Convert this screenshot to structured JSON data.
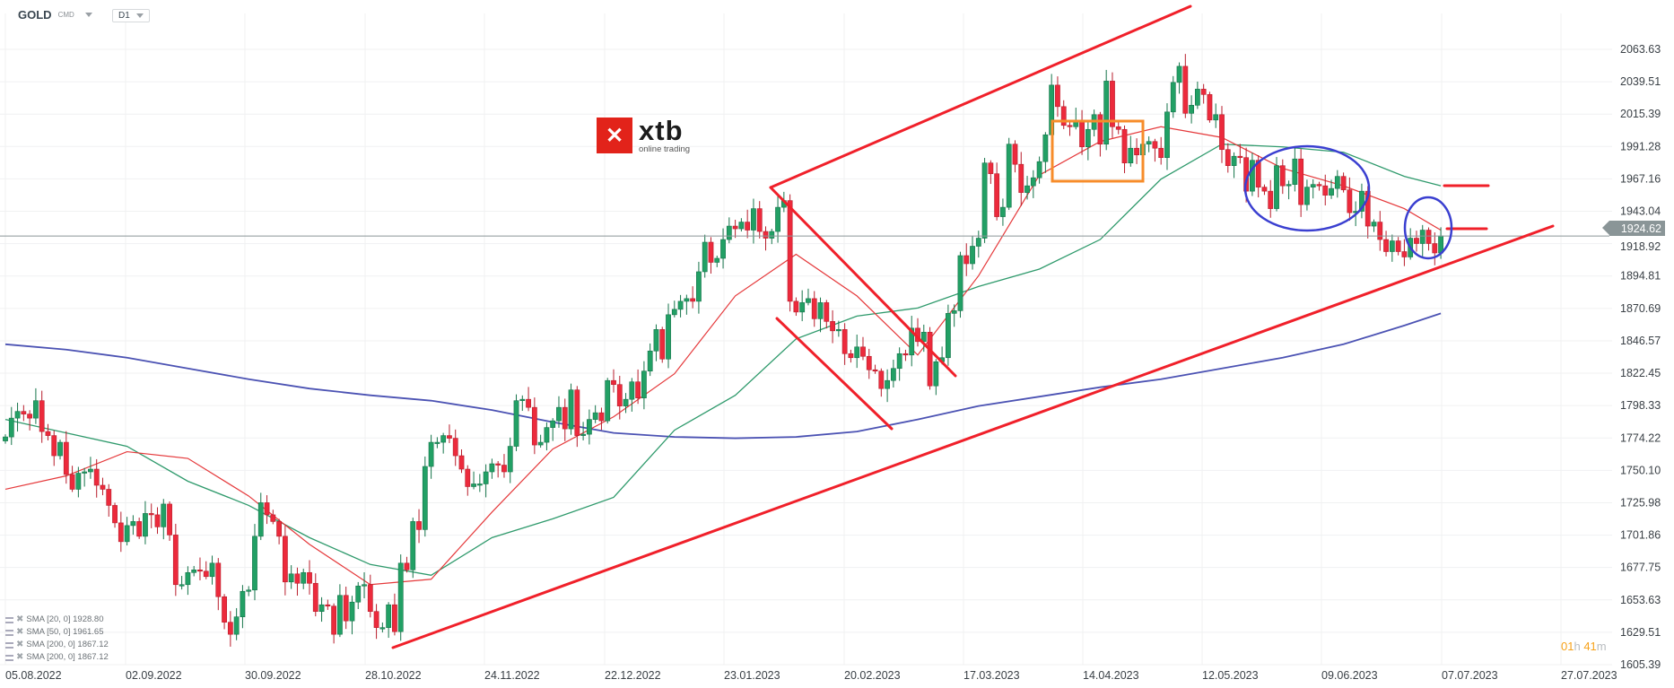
{
  "header": {
    "symbol": "GOLD",
    "symbol_type": "CMD",
    "timeframe": "D1"
  },
  "logo": {
    "main": "xtb",
    "sub": "online trading"
  },
  "countdown": {
    "hours": "01",
    "h_unit": "h",
    "minutes": "41",
    "m_unit": "m"
  },
  "current_price": "1924.62",
  "legend": [
    {
      "label": "SMA [20, 0] 1928.80"
    },
    {
      "label": "SMA [50, 0] 1961.65"
    },
    {
      "label": "SMA [200, 0] 1867.12"
    },
    {
      "label": "SMA [200, 0] 1867.12"
    }
  ],
  "colors": {
    "up": "#22a065",
    "down": "#ec2a3c",
    "sma20": "#e5393b",
    "sma50": "#2f9a6c",
    "sma200": "#4b52b3",
    "trendline": "#f0202a",
    "box": "#f78c2a",
    "circle": "#3a3fd0",
    "price_line": "#8a9597"
  },
  "chart_data": {
    "type": "candlestick",
    "title": "",
    "grid": true,
    "y_ticks": [
      "2063.63",
      "2039.51",
      "2015.39",
      "1991.28",
      "1967.16",
      "1943.04",
      "1918.92",
      "1894.81",
      "1870.69",
      "1846.57",
      "1822.45",
      "1798.33",
      "1774.22",
      "1750.10",
      "1725.98",
      "1701.86",
      "1677.75",
      "1653.63",
      "1629.51",
      "1605.39"
    ],
    "ylim": [
      1605.39,
      2063.63
    ],
    "x_ticks": [
      "05.08.2022",
      "02.09.2022",
      "30.09.2022",
      "28.10.2022",
      "24.11.2022",
      "22.12.2022",
      "23.01.2023",
      "20.02.2023",
      "17.03.2023",
      "14.04.2023",
      "12.05.2023",
      "09.06.2023",
      "07.07.2023",
      "27.07.2023"
    ],
    "closes": [
      1775,
      1789,
      1794,
      1792,
      1789,
      1802,
      1779,
      1776,
      1761,
      1771,
      1747,
      1736,
      1748,
      1749,
      1751,
      1739,
      1736,
      1724,
      1711,
      1697,
      1709,
      1712,
      1701,
      1718,
      1717,
      1708,
      1725,
      1702,
      1665,
      1665,
      1674,
      1676,
      1675,
      1671,
      1681,
      1656,
      1637,
      1628,
      1641,
      1660,
      1661,
      1701,
      1726,
      1717,
      1712,
      1701,
      1667,
      1673,
      1666,
      1674,
      1666,
      1645,
      1650,
      1649,
      1628,
      1657,
      1638,
      1652,
      1664,
      1665,
      1645,
      1633,
      1633,
      1650,
      1630,
      1681,
      1676,
      1712,
      1706,
      1753,
      1771,
      1771,
      1776,
      1774,
      1761,
      1751,
      1738,
      1740,
      1740,
      1749,
      1755,
      1754,
      1749,
      1768,
      1802,
      1803,
      1797,
      1769,
      1771,
      1782,
      1787,
      1797,
      1781,
      1810,
      1776,
      1777,
      1788,
      1793,
      1787,
      1817,
      1814,
      1798,
      1803,
      1816,
      1804,
      1824,
      1839,
      1855,
      1833,
      1866,
      1870,
      1876,
      1878,
      1876,
      1898,
      1920,
      1905,
      1908,
      1922,
      1932,
      1930,
      1935,
      1929,
      1945,
      1928,
      1923,
      1928,
      1946,
      1951,
      1876,
      1868,
      1875,
      1878,
      1863,
      1875,
      1861,
      1854,
      1855,
      1837,
      1834,
      1842,
      1835,
      1825,
      1824,
      1811,
      1817,
      1826,
      1837,
      1836,
      1856,
      1846,
      1853,
      1813,
      1831,
      1834,
      1867,
      1869,
      1910,
      1904,
      1917,
      1923,
      1979,
      1971,
      1939,
      1946,
      1993,
      1978,
      1957,
      1962,
      1968,
      1980,
      2000,
      2037,
      2021,
      2007,
      2006,
      2011,
      1991,
      2004,
      2015,
      1993,
      2040,
      2006,
      2004,
      1979,
      1990,
      1985,
      1993,
      1995,
      1990,
      1983,
      2017,
      2039,
      2051,
      2016,
      2022,
      2034,
      2030,
      2011,
      2015,
      1989,
      1977,
      1984,
      1983,
      1958,
      1981,
      1961,
      1958,
      1945,
      1977,
      1962,
      1963,
      1982,
      1948,
      1961,
      1963,
      1962,
      1955,
      1960,
      1969,
      1959,
      1942,
      1943,
      1958,
      1932,
      1935,
      1922,
      1913,
      1921,
      1913,
      1909,
      1923,
      1919,
      1929,
      1919,
      1912,
      1924.62
    ],
    "series": [
      {
        "name": "SMA [20, 0]",
        "every_n_bars": 10,
        "values": [
          1736,
          1746,
          1764,
          1759,
          1731,
          1695,
          1665,
          1669,
          1719,
          1766,
          1790,
          1822,
          1880,
          1911,
          1880,
          1836,
          1895,
          1970,
          1995,
          2006,
          1998,
          1975,
          1962,
          1945,
          1929
        ]
      },
      {
        "name": "SMA [50, 0]",
        "every_n_bars": 10,
        "values": [
          1788,
          1778,
          1768,
          1742,
          1724,
          1700,
          1680,
          1672,
          1700,
          1714,
          1730,
          1780,
          1806,
          1848,
          1865,
          1871,
          1887,
          1900,
          1922,
          1967,
          1993,
          1991,
          1987,
          1969,
          1962
        ]
      },
      {
        "name": "SMA [200, 0]",
        "every_n_bars": 10,
        "values": [
          1844,
          1840,
          1834,
          1826,
          1818,
          1811,
          1806,
          1802,
          1795,
          1786,
          1778,
          1775,
          1774,
          1775,
          1779,
          1788,
          1798,
          1805,
          1812,
          1818,
          1826,
          1834,
          1844,
          1858,
          1867
        ]
      }
    ]
  }
}
